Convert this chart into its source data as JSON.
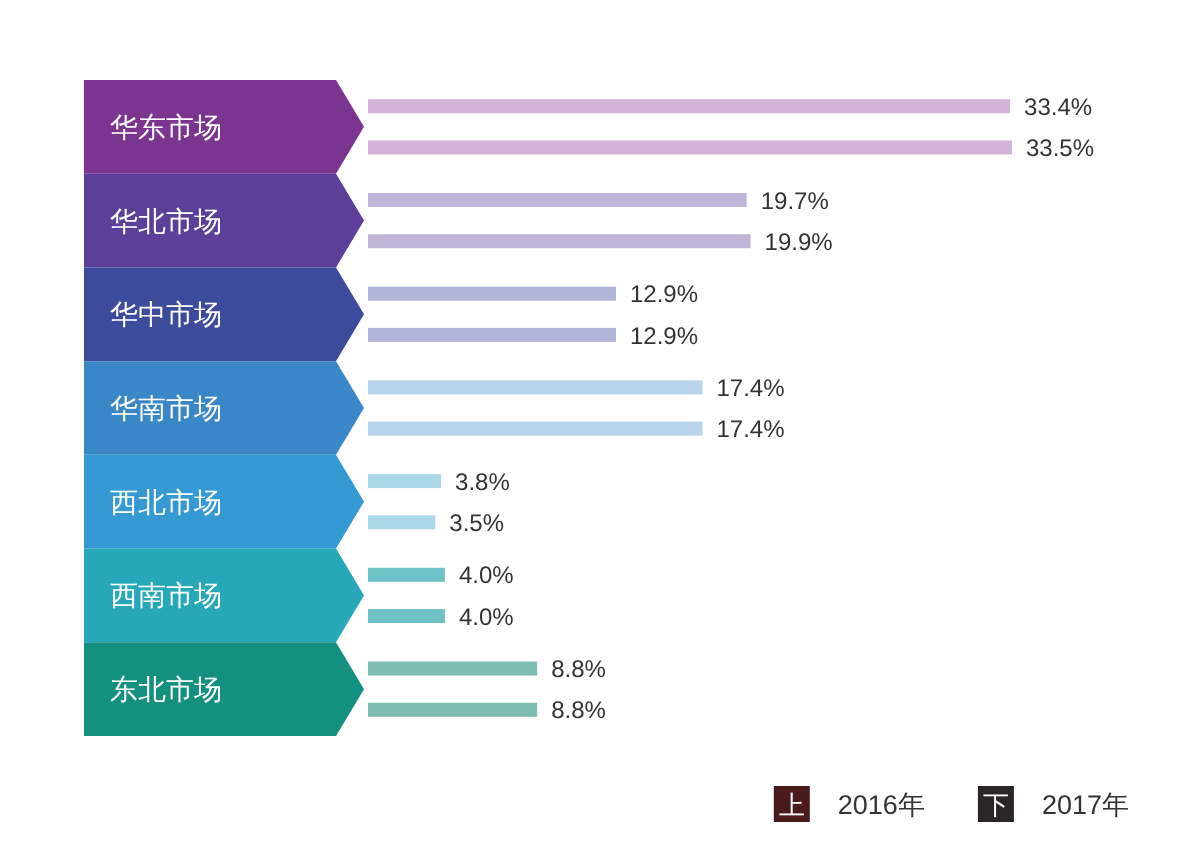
{
  "chart_data": {
    "type": "bar",
    "orientation": "horizontal",
    "categories": [
      "华东市场",
      "华北市场",
      "华中市场",
      "华南市场",
      "西北市场",
      "西南市场",
      "东北市场"
    ],
    "series": [
      {
        "name": "2016年",
        "color": "#4a1a1a",
        "colors": [
          "#d5b4d9",
          "#c0b5d8",
          "#b2b6da",
          "#b8d4ec",
          "#abd9e9",
          "#6fc2c8",
          "#7dbdb2"
        ],
        "values": [
          33.4,
          19.7,
          12.9,
          17.4,
          3.8,
          4.0,
          8.8
        ],
        "value_labels": [
          "33.4%",
          "19.7%",
          "12.9%",
          "17.4%",
          "3.8%",
          "4.0%",
          "8.8%"
        ]
      },
      {
        "name": "2017年",
        "color": "#2a2626",
        "colors": [
          "#d5b4d9",
          "#c0b5d8",
          "#b2b6da",
          "#b8d4ec",
          "#abd9e9",
          "#6fc2c8",
          "#7dbdb2"
        ],
        "values": [
          33.5,
          19.9,
          12.9,
          17.4,
          3.5,
          4.0,
          8.8
        ],
        "value_labels": [
          "33.5%",
          "19.9%",
          "12.9%",
          "17.4%",
          "3.5%",
          "4.0%",
          "8.8%"
        ]
      }
    ],
    "annotations": [
      "上",
      "下"
    ],
    "legend": "bottom right"
  }
}
